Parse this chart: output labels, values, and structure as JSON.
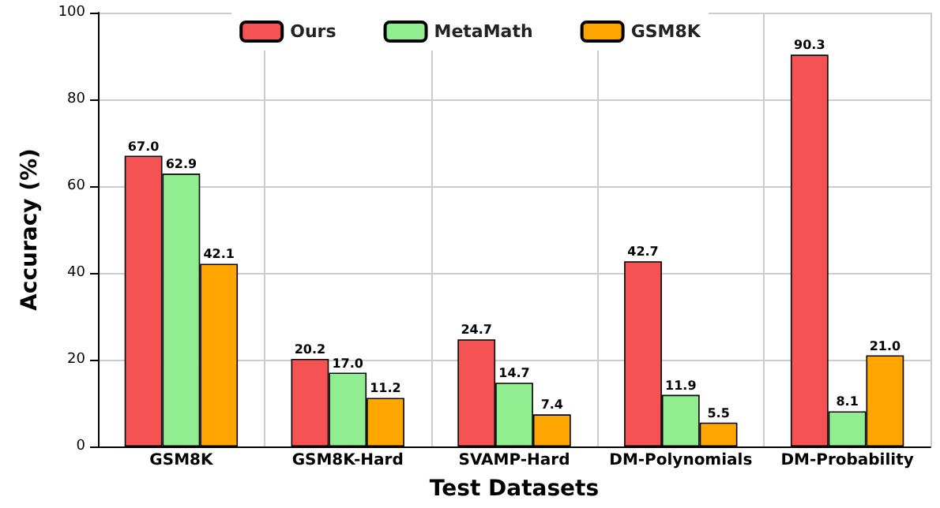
{
  "chart_data": {
    "type": "bar",
    "xlabel": "Test Datasets",
    "ylabel": "Accuracy (%)",
    "categories": [
      "GSM8K",
      "GSM8K-Hard",
      "SVAMP-Hard",
      "DM-Polynomials",
      "DM-Probability"
    ],
    "series": [
      {
        "name": "Ours",
        "color": "#f55353",
        "values": [
          67.0,
          20.2,
          24.7,
          42.7,
          90.3
        ],
        "value_labels": [
          "67.0",
          "20.2",
          "24.7",
          "42.7",
          "90.3"
        ]
      },
      {
        "name": "MetaMath",
        "color": "#90ee90",
        "values": [
          62.9,
          17.0,
          14.7,
          11.9,
          8.1
        ],
        "value_labels": [
          "62.9",
          "17.0",
          "14.7",
          "11.9",
          "8.1"
        ]
      },
      {
        "name": "GSM8K",
        "color": "#ffa500",
        "values": [
          42.1,
          11.2,
          7.4,
          5.5,
          21.0
        ],
        "value_labels": [
          "42.1",
          "11.2",
          "7.4",
          "5.5",
          "21.0"
        ]
      }
    ],
    "ylim": [
      0,
      100
    ],
    "yticks": [
      0,
      20,
      40,
      60,
      80,
      100
    ],
    "grid": true,
    "legend": "top"
  }
}
